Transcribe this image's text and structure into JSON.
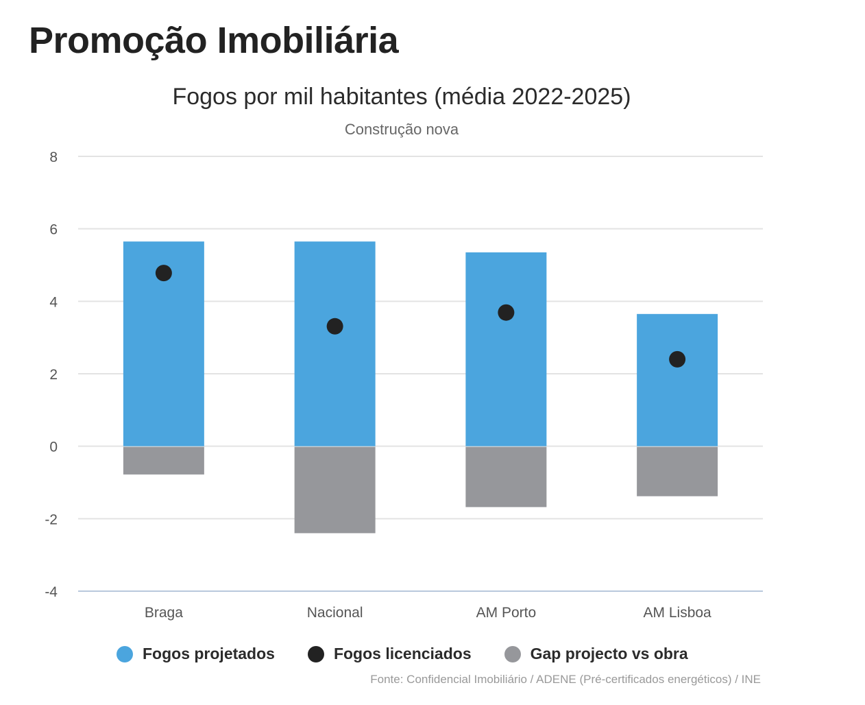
{
  "header": {
    "title": "Promoção Imobiliária"
  },
  "chart_data": {
    "type": "bar",
    "title": "Fogos por mil habitantes (média 2022-2025)",
    "subtitle": "Construção nova",
    "categories": [
      "Braga",
      "Nacional",
      "AM Porto",
      "AM Lisboa"
    ],
    "series": [
      {
        "name": "Fogos projetados",
        "type": "bar",
        "color": "#4ba5de",
        "values": [
          5.65,
          5.65,
          5.35,
          3.65
        ]
      },
      {
        "name": "Fogos licenciados",
        "type": "scatter",
        "color": "#222222",
        "values": [
          4.78,
          3.31,
          3.69,
          2.4
        ]
      },
      {
        "name": "Gap projecto vs obra",
        "type": "bar",
        "color": "#96979b",
        "values": [
          -0.78,
          -2.4,
          -1.68,
          -1.38
        ]
      }
    ],
    "ylim": [
      -4,
      8
    ],
    "yticks": [
      "8",
      "6",
      "4",
      "2",
      "0",
      "-2",
      "-4"
    ],
    "grid": true,
    "legend": "bottom",
    "source": "Fonte: Confidencial Imobiliário / ADENE (Pré-certificados energéticos) / INE"
  }
}
